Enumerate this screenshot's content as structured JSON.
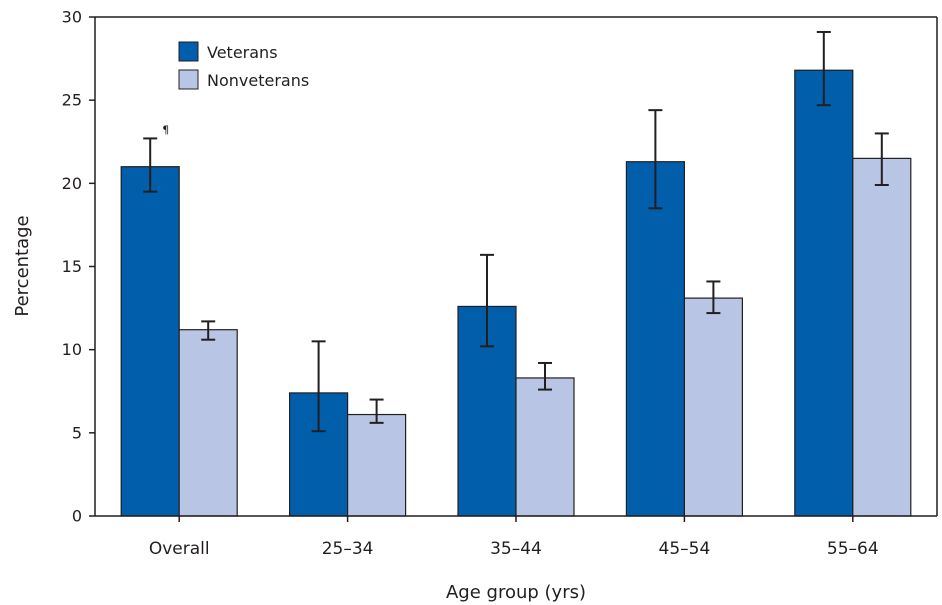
{
  "chart_data": {
    "type": "bar",
    "title": "",
    "xlabel": "Age group (yrs)",
    "ylabel": "Percentage",
    "ylim": [
      0,
      30
    ],
    "yticks": [
      0,
      5,
      10,
      15,
      20,
      25,
      30
    ],
    "categories": [
      "Overall",
      "25–34",
      "35–44",
      "45–54",
      "55–64"
    ],
    "series": [
      {
        "name": "Veterans",
        "color": "#005eaa",
        "values": [
          21.0,
          7.4,
          12.6,
          21.3,
          26.8
        ],
        "ci_low": [
          19.5,
          5.1,
          10.2,
          18.5,
          24.7
        ],
        "ci_high": [
          22.7,
          10.5,
          15.7,
          24.4,
          29.1
        ]
      },
      {
        "name": "Nonveterans",
        "color": "#b9c5e4",
        "values": [
          11.2,
          6.1,
          8.3,
          13.1,
          21.5
        ],
        "ci_low": [
          10.6,
          5.6,
          7.6,
          12.2,
          19.9
        ],
        "ci_high": [
          11.7,
          7.0,
          9.2,
          14.1,
          23.0
        ]
      }
    ],
    "annotations": [
      {
        "text": "¶",
        "category": "Overall",
        "series": "Veterans"
      }
    ],
    "legend_position": "top-left",
    "grid": false
  }
}
